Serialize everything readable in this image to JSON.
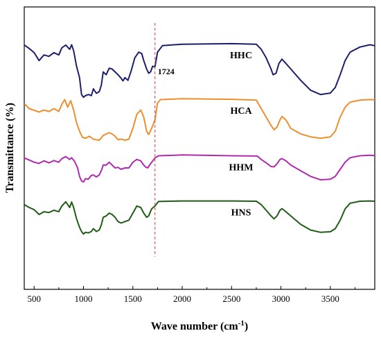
{
  "chart_data": {
    "type": "line",
    "xlabel": "Wave number (cm",
    "xlabel_sup": "-1",
    "xlabel_end": ")",
    "ylabel": "Transmittance (%)",
    "xlim": [
      400,
      3950
    ],
    "ylim": [
      0,
      100
    ],
    "xticks": [
      500,
      1000,
      1500,
      2000,
      2500,
      3000,
      3500
    ],
    "xtick_labels": [
      "500",
      "1000",
      "1500",
      "2000",
      "2500",
      "3000",
      "3500"
    ],
    "grid": false,
    "annotations": [
      {
        "x": 1724,
        "label": "1724",
        "style": "dashed",
        "color": "#e05a5a"
      }
    ],
    "series": [
      {
        "name": "HHC",
        "color": "#1b1f6b",
        "points": [
          [
            400,
            86.5
          ],
          [
            450,
            85.3
          ],
          [
            500,
            83.8
          ],
          [
            550,
            81
          ],
          [
            600,
            83
          ],
          [
            650,
            82.5
          ],
          [
            700,
            83.8
          ],
          [
            750,
            83
          ],
          [
            780,
            85.5
          ],
          [
            820,
            86.5
          ],
          [
            860,
            85
          ],
          [
            880,
            86.6
          ],
          [
            900,
            84.5
          ],
          [
            930,
            79
          ],
          [
            960,
            75
          ],
          [
            980,
            69
          ],
          [
            1000,
            68
          ],
          [
            1020,
            68.6
          ],
          [
            1050,
            69
          ],
          [
            1080,
            68.6
          ],
          [
            1100,
            71
          ],
          [
            1130,
            69.4
          ],
          [
            1160,
            70
          ],
          [
            1180,
            72.2
          ],
          [
            1200,
            77
          ],
          [
            1230,
            76
          ],
          [
            1260,
            78.3
          ],
          [
            1290,
            78
          ],
          [
            1320,
            77
          ],
          [
            1350,
            76
          ],
          [
            1380,
            74.8
          ],
          [
            1400,
            73.8
          ],
          [
            1420,
            75
          ],
          [
            1450,
            74
          ],
          [
            1480,
            77
          ],
          [
            1520,
            82
          ],
          [
            1560,
            84
          ],
          [
            1590,
            83.5
          ],
          [
            1610,
            81
          ],
          [
            1640,
            78
          ],
          [
            1660,
            76.5
          ],
          [
            1680,
            77
          ],
          [
            1700,
            79
          ],
          [
            1724,
            78.8
          ],
          [
            1750,
            84
          ],
          [
            1800,
            86.3
          ],
          [
            2000,
            86.8
          ],
          [
            2500,
            87
          ],
          [
            2750,
            86.8
          ],
          [
            2800,
            85
          ],
          [
            2850,
            82
          ],
          [
            2900,
            78
          ],
          [
            2920,
            76
          ],
          [
            2950,
            76.5
          ],
          [
            2980,
            80
          ],
          [
            3010,
            81.5
          ],
          [
            3050,
            80
          ],
          [
            3100,
            78
          ],
          [
            3200,
            74
          ],
          [
            3300,
            70.5
          ],
          [
            3400,
            69
          ],
          [
            3500,
            69.5
          ],
          [
            3550,
            71.5
          ],
          [
            3600,
            76
          ],
          [
            3650,
            81
          ],
          [
            3700,
            84
          ],
          [
            3800,
            85.8
          ],
          [
            3900,
            86.6
          ],
          [
            3950,
            86.3
          ]
        ]
      },
      {
        "name": "HCA",
        "color": "#ee8e2c",
        "points": [
          [
            400,
            65.8
          ],
          [
            450,
            64
          ],
          [
            500,
            63.4
          ],
          [
            550,
            62.8
          ],
          [
            600,
            63.5
          ],
          [
            650,
            63
          ],
          [
            700,
            64
          ],
          [
            750,
            63
          ],
          [
            780,
            65.5
          ],
          [
            810,
            67.2
          ],
          [
            840,
            64.5
          ],
          [
            870,
            66.8
          ],
          [
            900,
            63.5
          ],
          [
            930,
            59
          ],
          [
            960,
            56
          ],
          [
            990,
            53.8
          ],
          [
            1020,
            53.5
          ],
          [
            1060,
            54.2
          ],
          [
            1100,
            53.2
          ],
          [
            1130,
            53
          ],
          [
            1160,
            52.8
          ],
          [
            1200,
            54.5
          ],
          [
            1230,
            55
          ],
          [
            1260,
            55.5
          ],
          [
            1290,
            55
          ],
          [
            1320,
            54.2
          ],
          [
            1350,
            53
          ],
          [
            1380,
            53.2
          ],
          [
            1420,
            52.8
          ],
          [
            1460,
            53.2
          ],
          [
            1500,
            57
          ],
          [
            1540,
            62
          ],
          [
            1580,
            63.5
          ],
          [
            1610,
            61
          ],
          [
            1640,
            56
          ],
          [
            1660,
            54.8
          ],
          [
            1690,
            57
          ],
          [
            1724,
            60
          ],
          [
            1750,
            66
          ],
          [
            1780,
            67.2
          ],
          [
            2000,
            67.5
          ],
          [
            2500,
            67.3
          ],
          [
            2750,
            67
          ],
          [
            2800,
            64
          ],
          [
            2850,
            61
          ],
          [
            2900,
            58
          ],
          [
            2930,
            56.5
          ],
          [
            2960,
            57.5
          ],
          [
            2990,
            60
          ],
          [
            3010,
            61.2
          ],
          [
            3050,
            60
          ],
          [
            3100,
            57
          ],
          [
            3200,
            55
          ],
          [
            3300,
            54
          ],
          [
            3400,
            53.5
          ],
          [
            3500,
            54
          ],
          [
            3550,
            56
          ],
          [
            3600,
            61
          ],
          [
            3650,
            64.5
          ],
          [
            3700,
            66.3
          ],
          [
            3800,
            67
          ],
          [
            3900,
            67.2
          ],
          [
            3950,
            67.1
          ]
        ]
      },
      {
        "name": "HHM",
        "color": "#b029b0",
        "points": [
          [
            400,
            46.5
          ],
          [
            450,
            45.8
          ],
          [
            500,
            45
          ],
          [
            550,
            44.6
          ],
          [
            600,
            45.5
          ],
          [
            650,
            44.8
          ],
          [
            700,
            45.6
          ],
          [
            750,
            45
          ],
          [
            780,
            46.3
          ],
          [
            820,
            47
          ],
          [
            860,
            46
          ],
          [
            880,
            46.6
          ],
          [
            910,
            45.3
          ],
          [
            940,
            43
          ],
          [
            960,
            40
          ],
          [
            980,
            38.4
          ],
          [
            1000,
            38
          ],
          [
            1020,
            39.2
          ],
          [
            1050,
            39
          ],
          [
            1080,
            40.4
          ],
          [
            1100,
            40.5
          ],
          [
            1130,
            39.8
          ],
          [
            1160,
            40.5
          ],
          [
            1180,
            42
          ],
          [
            1200,
            44
          ],
          [
            1230,
            44
          ],
          [
            1260,
            45
          ],
          [
            1290,
            44
          ],
          [
            1320,
            43
          ],
          [
            1350,
            43.2
          ],
          [
            1380,
            42.5
          ],
          [
            1420,
            43
          ],
          [
            1460,
            43
          ],
          [
            1500,
            45
          ],
          [
            1540,
            46
          ],
          [
            1580,
            45.5
          ],
          [
            1610,
            44
          ],
          [
            1630,
            43.3
          ],
          [
            1650,
            43
          ],
          [
            1680,
            44.5
          ],
          [
            1724,
            46.5
          ],
          [
            1760,
            47.3
          ],
          [
            2000,
            47.6
          ],
          [
            2500,
            47.3
          ],
          [
            2760,
            47.2
          ],
          [
            2800,
            46
          ],
          [
            2850,
            44.8
          ],
          [
            2900,
            43.5
          ],
          [
            2930,
            43.4
          ],
          [
            2960,
            44.5
          ],
          [
            2990,
            46
          ],
          [
            3010,
            46.3
          ],
          [
            3050,
            45.5
          ],
          [
            3100,
            44
          ],
          [
            3200,
            42
          ],
          [
            3300,
            40
          ],
          [
            3400,
            38.8
          ],
          [
            3500,
            39
          ],
          [
            3550,
            40
          ],
          [
            3600,
            42.5
          ],
          [
            3650,
            45
          ],
          [
            3700,
            46.6
          ],
          [
            3800,
            47.3
          ],
          [
            3900,
            47.5
          ],
          [
            3950,
            47.4
          ]
        ]
      },
      {
        "name": "HNS",
        "color": "#1f5c15",
        "points": [
          [
            400,
            30
          ],
          [
            450,
            29
          ],
          [
            500,
            28.2
          ],
          [
            550,
            26.5
          ],
          [
            600,
            27.5
          ],
          [
            650,
            27.2
          ],
          [
            700,
            28
          ],
          [
            750,
            27.5
          ],
          [
            780,
            29.5
          ],
          [
            820,
            31
          ],
          [
            860,
            29
          ],
          [
            880,
            30.9
          ],
          [
            900,
            29
          ],
          [
            930,
            25
          ],
          [
            960,
            22
          ],
          [
            980,
            20.5
          ],
          [
            1000,
            19.6
          ],
          [
            1020,
            20.2
          ],
          [
            1050,
            20
          ],
          [
            1080,
            20.5
          ],
          [
            1100,
            21.5
          ],
          [
            1130,
            20.5
          ],
          [
            1160,
            21
          ],
          [
            1180,
            22.8
          ],
          [
            1200,
            25.5
          ],
          [
            1230,
            26
          ],
          [
            1260,
            27
          ],
          [
            1290,
            26.5
          ],
          [
            1320,
            25.5
          ],
          [
            1350,
            24
          ],
          [
            1380,
            23.5
          ],
          [
            1420,
            24
          ],
          [
            1460,
            24.5
          ],
          [
            1500,
            27
          ],
          [
            1540,
            29.5
          ],
          [
            1580,
            29
          ],
          [
            1610,
            27
          ],
          [
            1640,
            25.5
          ],
          [
            1660,
            26
          ],
          [
            1690,
            28.5
          ],
          [
            1724,
            29.5
          ],
          [
            1760,
            31.1
          ],
          [
            2000,
            31.3
          ],
          [
            2500,
            31.3
          ],
          [
            2750,
            31.2
          ],
          [
            2800,
            30
          ],
          [
            2850,
            28
          ],
          [
            2900,
            26
          ],
          [
            2930,
            25
          ],
          [
            2960,
            26
          ],
          [
            2990,
            28
          ],
          [
            3010,
            28.6
          ],
          [
            3050,
            27.5
          ],
          [
            3100,
            26
          ],
          [
            3200,
            23
          ],
          [
            3300,
            21
          ],
          [
            3400,
            20.2
          ],
          [
            3500,
            20.4
          ],
          [
            3550,
            21.5
          ],
          [
            3600,
            24.5
          ],
          [
            3650,
            28.5
          ],
          [
            3700,
            30.5
          ],
          [
            3800,
            31.2
          ],
          [
            3900,
            31.3
          ],
          [
            3950,
            31.2
          ]
        ]
      }
    ]
  }
}
